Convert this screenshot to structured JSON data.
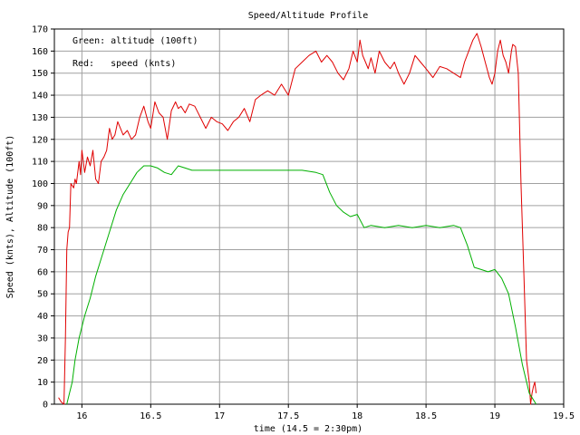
{
  "chart_data": {
    "type": "line",
    "title": "Speed/Altitude Profile",
    "xlabel": "time (14.5 = 2:30pm)",
    "ylabel": "Speed (knts), Altitude (100ft)",
    "xlim": [
      15.8,
      19.5
    ],
    "ylim": [
      0,
      170
    ],
    "x_ticks": [
      16,
      16.5,
      17,
      17.5,
      18,
      18.5,
      19,
      19.5
    ],
    "x_tick_labels": [
      "16",
      "16.5",
      "17",
      "17.5",
      "18",
      "18.5",
      "19",
      "19.5"
    ],
    "y_ticks": [
      0,
      10,
      20,
      30,
      40,
      50,
      60,
      70,
      80,
      90,
      100,
      110,
      120,
      130,
      140,
      150,
      160,
      170
    ],
    "y_tick_labels": [
      "0",
      "10",
      "20",
      "30",
      "40",
      "50",
      "60",
      "70",
      "80",
      "90",
      "100",
      "110",
      "120",
      "130",
      "140",
      "150",
      "160",
      "170"
    ],
    "grid": true,
    "annotations": [
      {
        "text": "Green: altitude (100ft)",
        "position": "top-left"
      },
      {
        "text": "Red:   speed (knts)",
        "position": "top-left"
      }
    ],
    "series": [
      {
        "name": "speed (knts)",
        "color": "#e00000",
        "x": [
          15.83,
          15.85,
          15.87,
          15.88,
          15.89,
          15.9,
          15.91,
          15.92,
          15.94,
          15.95,
          15.96,
          15.97,
          15.98,
          15.99,
          16.0,
          16.02,
          16.04,
          16.06,
          16.08,
          16.1,
          16.12,
          16.14,
          16.16,
          16.18,
          16.2,
          16.22,
          16.24,
          16.26,
          16.28,
          16.3,
          16.33,
          16.36,
          16.39,
          16.42,
          16.45,
          16.48,
          16.5,
          16.53,
          16.56,
          16.59,
          16.62,
          16.65,
          16.68,
          16.7,
          16.72,
          16.75,
          16.78,
          16.82,
          16.86,
          16.9,
          16.94,
          16.98,
          17.02,
          17.06,
          17.1,
          17.14,
          17.18,
          17.22,
          17.26,
          17.3,
          17.35,
          17.4,
          17.45,
          17.5,
          17.55,
          17.6,
          17.65,
          17.7,
          17.74,
          17.78,
          17.82,
          17.86,
          17.9,
          17.94,
          17.97,
          18.0,
          18.02,
          18.04,
          18.06,
          18.08,
          18.1,
          18.13,
          18.16,
          18.2,
          18.24,
          18.27,
          18.3,
          18.34,
          18.38,
          18.42,
          18.46,
          18.5,
          18.55,
          18.6,
          18.65,
          18.7,
          18.75,
          18.78,
          18.81,
          18.84,
          18.87,
          18.9,
          18.93,
          18.96,
          18.98,
          19.0,
          19.02,
          19.04,
          19.06,
          19.08,
          19.1,
          19.12,
          19.13,
          19.15,
          19.17,
          19.19,
          19.21,
          19.23,
          19.25,
          19.26,
          19.27,
          19.28,
          19.29,
          19.3
        ],
        "y": [
          3,
          1,
          0,
          30,
          70,
          78,
          80,
          100,
          98,
          102,
          100,
          105,
          110,
          104,
          115,
          105,
          112,
          108,
          115,
          102,
          100,
          110,
          112,
          115,
          125,
          120,
          122,
          128,
          125,
          122,
          124,
          120,
          122,
          130,
          135,
          128,
          125,
          137,
          132,
          130,
          120,
          133,
          137,
          134,
          135,
          132,
          136,
          135,
          130,
          125,
          130,
          128,
          127,
          124,
          128,
          130,
          134,
          128,
          138,
          140,
          142,
          140,
          145,
          140,
          152,
          155,
          158,
          160,
          155,
          158,
          155,
          150,
          147,
          152,
          160,
          155,
          165,
          158,
          155,
          152,
          157,
          150,
          160,
          155,
          152,
          155,
          150,
          145,
          150,
          158,
          155,
          152,
          148,
          153,
          152,
          150,
          148,
          155,
          160,
          165,
          168,
          162,
          155,
          148,
          145,
          150,
          160,
          165,
          158,
          155,
          150,
          160,
          163,
          162,
          150,
          100,
          60,
          20,
          10,
          0,
          5,
          8,
          10,
          5
        ]
      },
      {
        "name": "altitude (100ft)",
        "color": "#00b000",
        "x": [
          15.89,
          15.91,
          15.93,
          15.95,
          15.98,
          16.02,
          16.06,
          16.1,
          16.15,
          16.2,
          16.25,
          16.3,
          16.35,
          16.4,
          16.45,
          16.5,
          16.55,
          16.6,
          16.65,
          16.7,
          16.75,
          16.8,
          16.9,
          17.0,
          17.1,
          17.2,
          17.3,
          17.4,
          17.5,
          17.6,
          17.7,
          17.75,
          17.8,
          17.85,
          17.9,
          17.95,
          18.0,
          18.05,
          18.1,
          18.2,
          18.3,
          18.4,
          18.5,
          18.6,
          18.7,
          18.75,
          18.8,
          18.85,
          18.9,
          18.95,
          19.0,
          19.05,
          19.1,
          19.15,
          19.2,
          19.25,
          19.3
        ],
        "y": [
          0,
          5,
          10,
          20,
          30,
          40,
          48,
          58,
          68,
          78,
          88,
          95,
          100,
          105,
          108,
          108,
          107,
          105,
          104,
          108,
          107,
          106,
          106,
          106,
          106,
          106,
          106,
          106,
          106,
          106,
          105,
          104,
          96,
          90,
          87,
          85,
          86,
          80,
          81,
          80,
          81,
          80,
          81,
          80,
          81,
          80,
          72,
          62,
          61,
          60,
          61,
          57,
          50,
          35,
          18,
          5,
          0
        ]
      }
    ]
  }
}
